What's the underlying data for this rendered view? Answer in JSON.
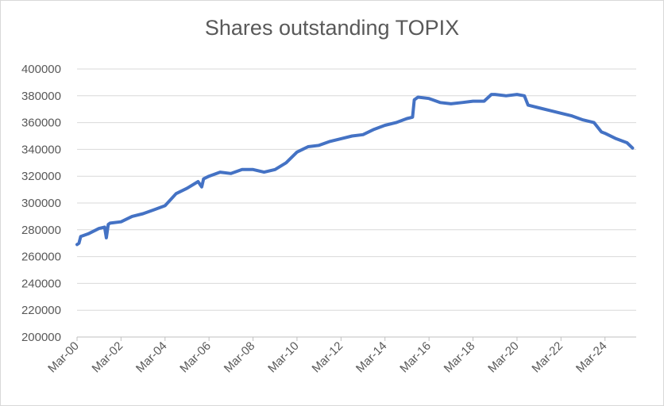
{
  "chart_data": {
    "type": "line",
    "title": "Shares outstanding TOPIX",
    "xlabel": "",
    "ylabel": "",
    "ylim": [
      200000,
      400000
    ],
    "yticks": [
      "200000",
      "220000",
      "240000",
      "260000",
      "280000",
      "300000",
      "320000",
      "340000",
      "360000",
      "380000",
      "400000"
    ],
    "xticks": [
      "Mar-00",
      "Mar-02",
      "Mar-04",
      "Mar-06",
      "Mar-08",
      "Mar-10",
      "Mar-12",
      "Mar-14",
      "Mar-16",
      "Mar-18",
      "Mar-20",
      "Mar-22",
      "Mar-24"
    ],
    "grid": true,
    "legend": "none",
    "color": "#4472c4",
    "series": [
      {
        "x": [
          "2000-03",
          "2000-04",
          "2000-05",
          "2000-09",
          "2001-03",
          "2001-06",
          "2001-07",
          "2001-08",
          "2001-09",
          "2002-03",
          "2002-09",
          "2003-03",
          "2003-09",
          "2004-03",
          "2004-09",
          "2005-03",
          "2005-09",
          "2005-11",
          "2005-12",
          "2006-03",
          "2006-09",
          "2007-03",
          "2007-09",
          "2008-03",
          "2008-09",
          "2009-03",
          "2009-09",
          "2010-03",
          "2010-09",
          "2011-03",
          "2011-09",
          "2012-03",
          "2012-09",
          "2013-03",
          "2013-09",
          "2014-03",
          "2014-09",
          "2015-03",
          "2015-06",
          "2015-07",
          "2015-09",
          "2016-03",
          "2016-09",
          "2017-03",
          "2017-09",
          "2018-03",
          "2018-09",
          "2019-01",
          "2019-03",
          "2019-09",
          "2020-03",
          "2020-07",
          "2020-09",
          "2021-03",
          "2021-09",
          "2022-03",
          "2022-09",
          "2023-03",
          "2023-09",
          "2024-01",
          "2024-03",
          "2024-09",
          "2025-03",
          "2025-06"
        ],
        "y": [
          269000,
          270000,
          275000,
          277000,
          281000,
          282000,
          274000,
          284000,
          285000,
          286000,
          290000,
          292000,
          295000,
          298000,
          307000,
          311000,
          316000,
          312000,
          318000,
          320000,
          323000,
          322000,
          325000,
          325000,
          323000,
          325000,
          330000,
          338000,
          342000,
          343000,
          346000,
          348000,
          350000,
          351000,
          355000,
          358000,
          360000,
          363000,
          364000,
          377000,
          379000,
          378000,
          375000,
          374000,
          375000,
          376000,
          376000,
          381000,
          381000,
          380000,
          381000,
          380000,
          373000,
          371000,
          369000,
          367000,
          365000,
          362000,
          360000,
          353000,
          352000,
          348000,
          345000,
          341000
        ]
      }
    ]
  }
}
